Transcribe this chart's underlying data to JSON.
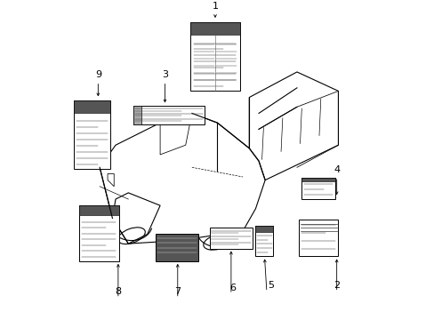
{
  "bg_color": "#ffffff",
  "fig_width": 4.89,
  "fig_height": 3.6,
  "dpi": 100,
  "truck_color": "#000000",
  "label_line_color": "#333333",
  "label_header_color": "#555555",
  "label_dark_color": "#555555",
  "label_dark_line": "#cccccc"
}
